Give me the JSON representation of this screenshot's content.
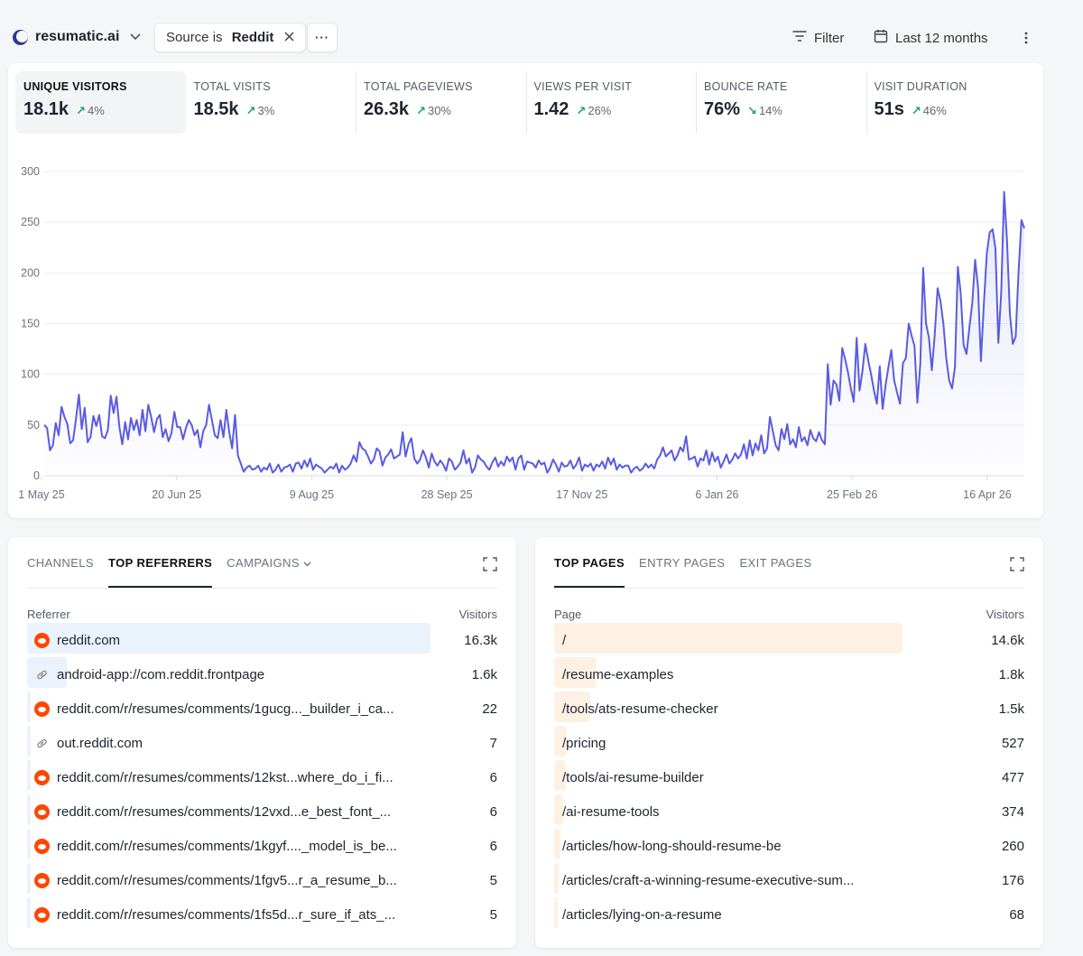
{
  "topbar": {
    "site_name": "resumatic.ai",
    "filter_chip_prefix": "Source is ",
    "filter_chip_value": "Reddit",
    "more_label": "···",
    "filter_label": "Filter",
    "date_range_label": "Last 12 months"
  },
  "stats": [
    {
      "label": "UNIQUE VISITORS",
      "value": "18.1k",
      "change": "4%",
      "direction": "up",
      "active": true
    },
    {
      "label": "TOTAL VISITS",
      "value": "18.5k",
      "change": "3%",
      "direction": "up",
      "active": false
    },
    {
      "label": "TOTAL PAGEVIEWS",
      "value": "26.3k",
      "change": "30%",
      "direction": "up",
      "active": false
    },
    {
      "label": "VIEWS PER VISIT",
      "value": "1.42",
      "change": "26%",
      "direction": "up",
      "active": false
    },
    {
      "label": "BOUNCE RATE",
      "value": "76%",
      "change": "14%",
      "direction": "down",
      "active": false
    },
    {
      "label": "VISIT DURATION",
      "value": "51s",
      "change": "46%",
      "direction": "up",
      "active": false
    }
  ],
  "colors": {
    "line": "#5a5ce0",
    "positive": "#22a06b",
    "referrer_bar": "#eaf2fc",
    "page_bar": "#fdf1e4",
    "reddit": "#ff4500"
  },
  "chart_data": {
    "type": "line",
    "title": "",
    "xlabel": "",
    "ylabel": "",
    "ylim": [
      0,
      300
    ],
    "yticks": [
      0,
      50,
      100,
      150,
      200,
      250,
      300
    ],
    "xtick_labels": [
      "1 May 25",
      "20 Jun 25",
      "9 Aug 25",
      "28 Sep 25",
      "17 Nov 25",
      "6 Jan 26",
      "25 Feb 26",
      "16 Apr 26"
    ],
    "grid": true,
    "series": [
      {
        "name": "",
        "values": [
          50,
          47,
          25,
          30,
          52,
          40,
          68,
          58,
          51,
          32,
          35,
          56,
          80,
          46,
          67,
          33,
          38,
          59,
          49,
          60,
          39,
          37,
          45,
          79,
          62,
          78,
          48,
          31,
          53,
          36,
          57,
          45,
          55,
          40,
          65,
          44,
          70,
          58,
          43,
          56,
          60,
          38,
          46,
          34,
          42,
          63,
          48,
          48,
          36,
          47,
          55,
          50,
          40,
          45,
          28,
          44,
          50,
          70,
          55,
          40,
          37,
          55,
          38,
          65,
          43,
          27,
          60,
          20,
          12,
          4,
          8,
          10,
          6,
          7,
          10,
          4,
          8,
          6,
          12,
          3,
          6,
          11,
          4,
          8,
          9,
          11,
          4,
          12,
          13,
          7,
          15,
          9,
          17,
          6,
          11,
          9,
          7,
          3,
          6,
          9,
          7,
          12,
          3,
          10,
          6,
          8,
          12,
          20,
          14,
          33,
          27,
          25,
          19,
          12,
          16,
          27,
          24,
          10,
          18,
          21,
          26,
          17,
          19,
          21,
          43,
          19,
          31,
          37,
          17,
          12,
          16,
          25,
          18,
          8,
          22,
          14,
          10,
          15,
          11,
          5,
          17,
          14,
          6,
          9,
          13,
          25,
          12,
          17,
          3,
          8,
          20,
          16,
          14,
          9,
          6,
          13,
          18,
          9,
          14,
          10,
          19,
          14,
          18,
          6,
          17,
          20,
          6,
          14,
          13,
          12,
          8,
          15,
          11,
          13,
          3,
          8,
          16,
          11,
          4,
          13,
          9,
          10,
          15,
          7,
          11,
          18,
          5,
          11,
          9,
          12,
          5,
          11,
          9,
          14,
          7,
          18,
          11,
          17,
          6,
          11,
          8,
          10,
          10,
          3,
          7,
          9,
          5,
          7,
          12,
          8,
          11,
          7,
          16,
          20,
          28,
          19,
          22,
          25,
          15,
          20,
          28,
          24,
          39,
          16,
          17,
          19,
          9,
          17,
          15,
          25,
          11,
          23,
          14,
          19,
          8,
          14,
          21,
          12,
          16,
          22,
          17,
          21,
          31,
          17,
          35,
          20,
          32,
          25,
          40,
          22,
          27,
          58,
          44,
          30,
          25,
          46,
          36,
          51,
          31,
          36,
          28,
          48,
          34,
          38,
          30,
          45,
          37,
          34,
          43,
          35,
          31,
          110,
          70,
          94,
          90,
          74,
          126,
          115,
          102,
          86,
          73,
          136,
          84,
          103,
          130,
          114,
          100,
          84,
          71,
          108,
          66,
          89,
          107,
          124,
          94,
          82,
          71,
          111,
          116,
          150,
          138,
          128,
          72,
          110,
          205,
          150,
          136,
          104,
          139,
          185,
          172,
          150,
          116,
          94,
          86,
          107,
          206,
          180,
          129,
          120,
          146,
          170,
          213,
          186,
          113,
          170,
          219,
          240,
          243,
          224,
          131,
          181,
          280,
          232,
          160,
          130,
          137,
          201,
          252,
          244
        ]
      }
    ]
  },
  "referrers_card": {
    "tabs": [
      {
        "label": "CHANNELS",
        "active": false,
        "dropdown": false
      },
      {
        "label": "TOP REFERRERS",
        "active": true,
        "dropdown": false
      },
      {
        "label": "CAMPAIGNS",
        "active": false,
        "dropdown": true
      }
    ],
    "col_left": "Referrer",
    "col_right": "Visitors",
    "rows": [
      {
        "label": "reddit.com",
        "value": "16.3k",
        "icon": "reddit-icon",
        "fraction": 1.0
      },
      {
        "label": "android-app://com.reddit.frontpage",
        "value": "1.6k",
        "icon": "link-icon",
        "fraction": 0.098
      },
      {
        "label": "reddit.com/r/resumes/comments/1gucg..._builder_i_ca...",
        "value": "22",
        "icon": "reddit-icon",
        "fraction": 0.0014
      },
      {
        "label": "out.reddit.com",
        "value": "7",
        "icon": "link-icon",
        "fraction": 0.0004
      },
      {
        "label": "reddit.com/r/resumes/comments/12kst...where_do_i_fi...",
        "value": "6",
        "icon": "reddit-icon",
        "fraction": 0.0004
      },
      {
        "label": "reddit.com/r/resumes/comments/12vxd...e_best_font_...",
        "value": "6",
        "icon": "reddit-icon",
        "fraction": 0.0004
      },
      {
        "label": "reddit.com/r/resumes/comments/1kgyf...._model_is_be...",
        "value": "6",
        "icon": "reddit-icon",
        "fraction": 0.0004
      },
      {
        "label": "reddit.com/r/resumes/comments/1fgv5...r_a_resume_b...",
        "value": "5",
        "icon": "reddit-icon",
        "fraction": 0.0003
      },
      {
        "label": "reddit.com/r/resumes/comments/1fs5d...r_sure_if_ats_...",
        "value": "5",
        "icon": "reddit-icon",
        "fraction": 0.0003
      }
    ]
  },
  "pages_card": {
    "tabs": [
      {
        "label": "TOP PAGES",
        "active": true
      },
      {
        "label": "ENTRY PAGES",
        "active": false
      },
      {
        "label": "EXIT PAGES",
        "active": false
      }
    ],
    "col_left": "Page",
    "col_right": "Visitors",
    "rows": [
      {
        "label": "/",
        "value": "14.6k",
        "fraction": 1.0
      },
      {
        "label": "/resume-examples",
        "value": "1.8k",
        "fraction": 0.123
      },
      {
        "label": "/tools/ats-resume-checker",
        "value": "1.5k",
        "fraction": 0.103
      },
      {
        "label": "/pricing",
        "value": "527",
        "fraction": 0.036
      },
      {
        "label": "/tools/ai-resume-builder",
        "value": "477",
        "fraction": 0.033
      },
      {
        "label": "/ai-resume-tools",
        "value": "374",
        "fraction": 0.026
      },
      {
        "label": "/articles/how-long-should-resume-be",
        "value": "260",
        "fraction": 0.018
      },
      {
        "label": "/articles/craft-a-winning-resume-executive-sum...",
        "value": "176",
        "fraction": 0.012
      },
      {
        "label": "/articles/lying-on-a-resume",
        "value": "68",
        "fraction": 0.005
      }
    ]
  }
}
